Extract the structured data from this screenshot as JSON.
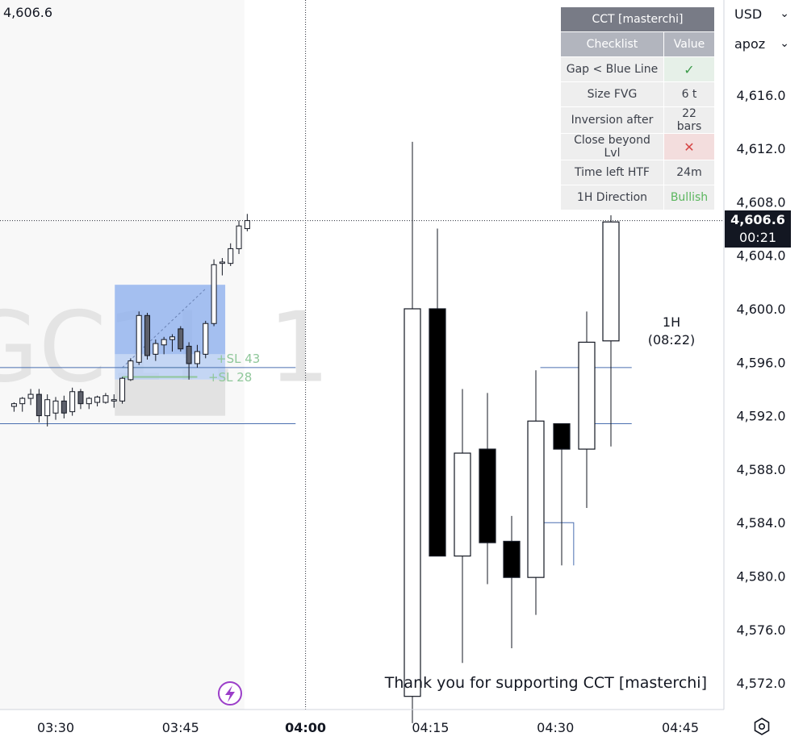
{
  "chart_data": {
    "type": "candlestick",
    "title": "",
    "watermark": "GC1!, 1",
    "ylim": [
      4569.4,
      4621.5
    ],
    "y_ticks": [
      "4,616.0",
      "4,612.0",
      "4,608.0",
      "4,604.0",
      "4,600.0",
      "4,596.0",
      "4,592.0",
      "4,588.0",
      "4,584.0",
      "4,580.0",
      "4,576.0",
      "4,572.0"
    ],
    "x_ticks": [
      "03:30",
      "03:45",
      "04:00",
      "04:15",
      "04:30",
      "04:45"
    ],
    "current_price": "4,606.6",
    "countdown": "00:21",
    "top_left_price": "4,606.6",
    "htf_label": "1H",
    "htf_timer": "(08:22)",
    "sl_labels": [
      "+SL 43",
      "+SL 28"
    ],
    "footer": "Thank you for supporting CCT [masterchi]",
    "levels": [
      4595.6,
      4591.4
    ],
    "htf_candles": [
      {
        "time": "04:14",
        "open": 4571.0,
        "high": 4612.5,
        "low": 4569.0,
        "close": 4600.0
      },
      {
        "time": "04:17",
        "open": 4600.0,
        "high": 4606.0,
        "low": 4581.5,
        "close": 4581.5
      },
      {
        "time": "04:20",
        "open": 4581.5,
        "high": 4594.0,
        "low": 4573.5,
        "close": 4589.2
      },
      {
        "time": "04:23",
        "open": 4589.5,
        "high": 4593.7,
        "low": 4579.4,
        "close": 4582.5
      },
      {
        "time": "04:26",
        "open": 4582.6,
        "high": 4584.5,
        "low": 4574.6,
        "close": 4579.9
      },
      {
        "time": "04:29",
        "open": 4579.9,
        "high": 4595.4,
        "low": 4577.1,
        "close": 4591.6
      },
      {
        "time": "04:32",
        "open": 4591.4,
        "high": 4591.4,
        "low": 4580.8,
        "close": 4589.5
      },
      {
        "time": "04:35",
        "open": 4589.5,
        "high": 4599.8,
        "low": 4585.1,
        "close": 4597.5
      },
      {
        "time": "04:38",
        "open": 4597.6,
        "high": 4607.0,
        "low": 4589.7,
        "close": 4606.5
      }
    ],
    "ltf_candles": [
      {
        "time": "03:25",
        "open": 4592.7,
        "high": 4593.0,
        "low": 4592.3,
        "close": 4592.9
      },
      {
        "time": "03:26",
        "open": 4592.9,
        "high": 4593.4,
        "low": 4592.3,
        "close": 4593.3
      },
      {
        "time": "03:27",
        "open": 4593.3,
        "high": 4594.0,
        "low": 4592.8,
        "close": 4593.6
      },
      {
        "time": "03:28",
        "open": 4593.6,
        "high": 4594.0,
        "low": 4591.5,
        "close": 4592.0
      },
      {
        "time": "03:29",
        "open": 4592.0,
        "high": 4593.6,
        "low": 4591.2,
        "close": 4593.2
      },
      {
        "time": "03:30",
        "open": 4592.2,
        "high": 4593.4,
        "low": 4591.7,
        "close": 4593.1
      },
      {
        "time": "03:31",
        "open": 4593.1,
        "high": 4593.5,
        "low": 4591.8,
        "close": 4592.2
      },
      {
        "time": "03:32",
        "open": 4592.3,
        "high": 4594.1,
        "low": 4592.0,
        "close": 4593.8
      },
      {
        "time": "03:33",
        "open": 4593.8,
        "high": 4594.0,
        "low": 4592.5,
        "close": 4592.9
      },
      {
        "time": "03:34",
        "open": 4592.9,
        "high": 4593.4,
        "low": 4592.5,
        "close": 4593.3
      },
      {
        "time": "03:35",
        "open": 4593.0,
        "high": 4593.5,
        "low": 4592.7,
        "close": 4593.4
      },
      {
        "time": "03:36",
        "open": 4593.0,
        "high": 4593.7,
        "low": 4592.9,
        "close": 4593.5
      },
      {
        "time": "03:37",
        "open": 4593.1,
        "high": 4593.6,
        "low": 4592.6,
        "close": 4593.2
      },
      {
        "time": "03:38",
        "open": 4593.1,
        "high": 4594.9,
        "low": 4592.9,
        "close": 4594.8
      },
      {
        "time": "03:39",
        "open": 4594.7,
        "high": 4596.3,
        "low": 4594.6,
        "close": 4596.1
      },
      {
        "time": "03:40",
        "open": 4596.0,
        "high": 4599.8,
        "low": 4595.8,
        "close": 4599.5
      },
      {
        "time": "03:41",
        "open": 4599.5,
        "high": 4599.7,
        "low": 4596.2,
        "close": 4596.5
      },
      {
        "time": "03:42",
        "open": 4596.6,
        "high": 4597.7,
        "low": 4596.1,
        "close": 4597.4
      },
      {
        "time": "03:43",
        "open": 4597.3,
        "high": 4597.9,
        "low": 4596.6,
        "close": 4597.7
      },
      {
        "time": "03:44",
        "open": 4597.7,
        "high": 4598.1,
        "low": 4596.8,
        "close": 4597.9
      },
      {
        "time": "03:45",
        "open": 4598.5,
        "high": 4598.7,
        "low": 4596.8,
        "close": 4597.0
      },
      {
        "time": "03:46",
        "open": 4597.2,
        "high": 4597.5,
        "low": 4594.7,
        "close": 4595.9
      },
      {
        "time": "03:47",
        "open": 4595.9,
        "high": 4597.3,
        "low": 4595.6,
        "close": 4596.8
      },
      {
        "time": "03:48",
        "open": 4596.6,
        "high": 4599.1,
        "low": 4596.3,
        "close": 4598.9
      },
      {
        "time": "03:49",
        "open": 4598.9,
        "high": 4603.7,
        "low": 4598.7,
        "close": 4603.3
      },
      {
        "time": "03:50",
        "open": 4603.4,
        "high": 4603.8,
        "low": 4602.5,
        "close": 4603.5
      },
      {
        "time": "03:51",
        "open": 4603.4,
        "high": 4604.9,
        "low": 4603.2,
        "close": 4604.5
      },
      {
        "time": "03:52",
        "open": 4604.5,
        "high": 4606.6,
        "low": 4604.1,
        "close": 4606.2
      },
      {
        "time": "03:53",
        "open": 4606.0,
        "high": 4607.1,
        "low": 4605.8,
        "close": 4606.6
      }
    ]
  },
  "checklist": {
    "title": "CCT [masterchi]",
    "col_checklist": "Checklist",
    "col_value": "Value",
    "rows": [
      {
        "label": "Gap < Blue Line",
        "value": "✓"
      },
      {
        "label": "Size FVG",
        "value": "6 t"
      },
      {
        "label": "Inversion after",
        "value": "22 bars"
      },
      {
        "label": "Close beyond Lvl",
        "value": "✕"
      },
      {
        "label": "Time left HTF",
        "value": "24m"
      },
      {
        "label": "1H Direction",
        "value": "Bullish"
      }
    ]
  },
  "toolbar": {
    "currency": "USD",
    "account": "apoz"
  },
  "colors": {
    "bg": "#ffffff",
    "ltf_panel": "#f8f8f8",
    "level_line": "#4a6fb0",
    "fvg_blue": "#8fb0ee",
    "fvg_grey": "#e2e2e2",
    "sl_green": "#8fc79a",
    "bolt": "#9b3ec9",
    "ok_green": "#3c9b4a",
    "bad_red": "#d64545"
  }
}
